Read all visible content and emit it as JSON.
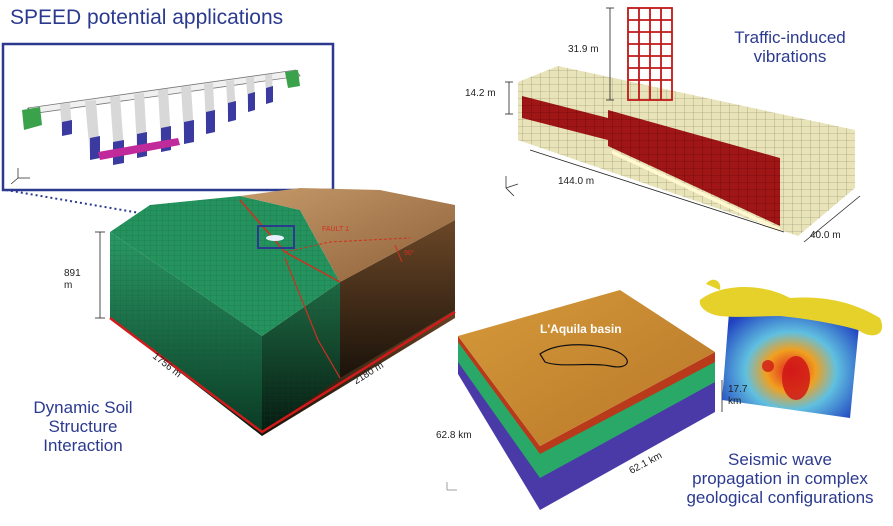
{
  "title": "SPEED potential applications",
  "captions": {
    "traffic_line1": "Traffic-induced",
    "traffic_line2": "vibrations",
    "dssi_line1": "Dynamic Soil",
    "dssi_line2": "Structure",
    "dssi_line3": "Interaction",
    "seismic_line1": "Seismic wave",
    "seismic_line2": "propagation in complex",
    "seismic_line3": "geological configurations"
  },
  "traffic_model": {
    "height_building": "31.9 m",
    "height_tunnel": "14.2 m",
    "length": "144.0 m",
    "width": "40.0 m"
  },
  "dssi_model": {
    "depth_value": "891",
    "depth_unit": "m",
    "side_a": "1756 m",
    "side_b": "2180 m",
    "fault_label": "FAULT 1",
    "angle_label": "90°"
  },
  "aquila_model": {
    "basin_label": "L'Aquila basin",
    "side_a": "62.8 km",
    "side_b": "62.1 km",
    "depth_value": "17.7",
    "depth_unit": "km"
  },
  "colors": {
    "accent_blue": "#2b3a8f",
    "terrain_green": "#1f8a5a",
    "terrain_brown": "#b58655",
    "tunnel_red": "#a01515",
    "mesh_cream": "#e8e3b8"
  }
}
